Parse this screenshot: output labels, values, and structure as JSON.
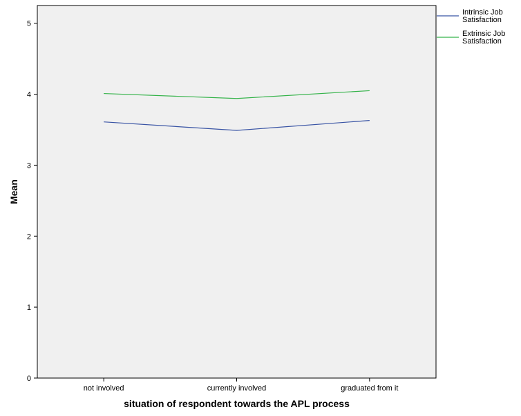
{
  "chart_data": {
    "type": "line",
    "title": "",
    "xlabel": "situation of respondent towards the APL process",
    "ylabel": "Mean",
    "categories": [
      "not involved",
      "currently involved",
      "graduated from it"
    ],
    "ylim": [
      0,
      5.25
    ],
    "yticks": [
      0,
      1,
      2,
      3,
      4,
      5
    ],
    "grid": false,
    "legend_position": "top-right",
    "series": [
      {
        "name_lines": [
          "Intrinsic Job",
          "Satisfaction"
        ],
        "values": [
          3.61,
          3.49,
          3.63
        ],
        "color": "#3853a4"
      },
      {
        "name_lines": [
          "Extrinsic Job",
          "Satisfaction"
        ],
        "values": [
          4.01,
          3.94,
          4.05
        ],
        "color": "#35b34a"
      }
    ],
    "colors": {
      "plot_background": "#f0f0f0",
      "axis": "#000000"
    }
  }
}
